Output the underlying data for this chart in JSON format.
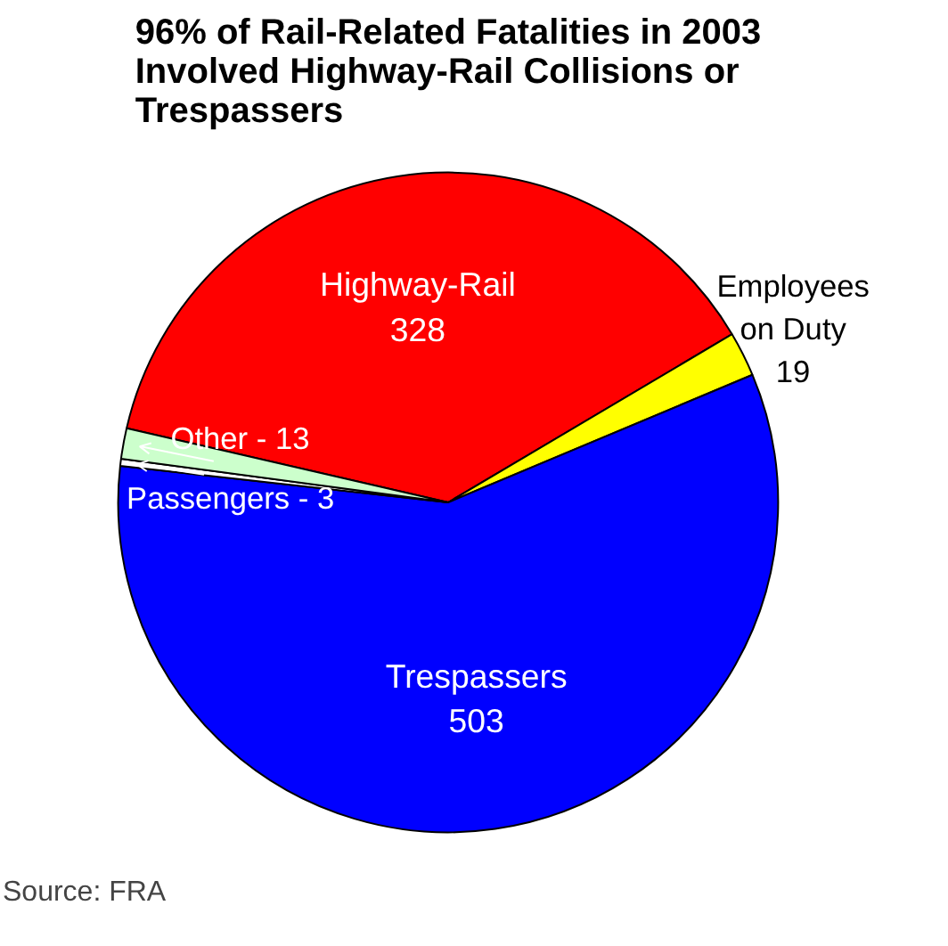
{
  "chart_data": {
    "type": "pie",
    "title": "96% of Rail-Related Fatalities in 2003 Involved Highway-Rail Collisions or Trespassers",
    "categories": [
      "Highway-Rail",
      "Employees on Duty",
      "Trespassers",
      "Passengers - 3",
      "Other - 13"
    ],
    "values": [
      328,
      19,
      503,
      3,
      13
    ],
    "colors": [
      "#ff0000",
      "#ffff00",
      "#0000ff",
      "#ffffff",
      "#ccffcc"
    ],
    "value_labels": [
      "328",
      "19",
      "503",
      null,
      null
    ],
    "annotations": [
      "Source: FRA"
    ]
  }
}
